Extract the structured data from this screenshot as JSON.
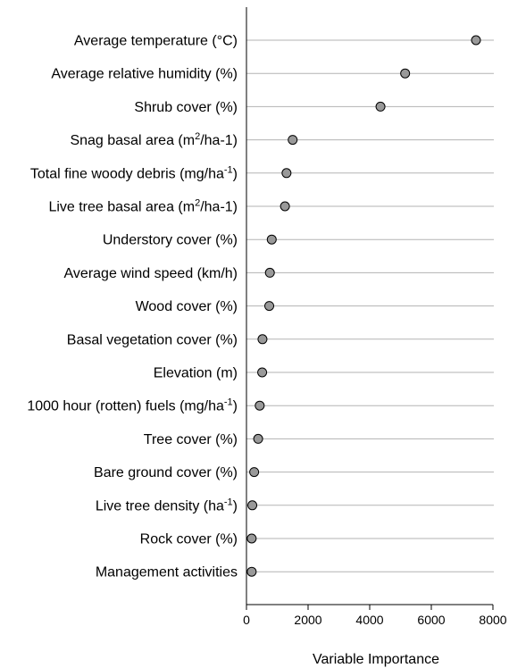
{
  "chart_data": {
    "type": "scatter",
    "orientation": "horizontal-dot-plot",
    "xlabel": "Variable Importance",
    "ylabel": "",
    "xlim": [
      0,
      8000
    ],
    "xticks": [
      0,
      2000,
      4000,
      6000,
      8000
    ],
    "xtick_labels": [
      "0",
      "2000",
      "4000",
      "6000",
      "8000"
    ],
    "grid": "horizontal-lines",
    "marker_color": "#999999",
    "categories": [
      {
        "label": "Average temperature (°C)",
        "base": "Average temperature (°C)",
        "sup": "",
        "tail": "",
        "value": 7450
      },
      {
        "label": "Average relative humidity (%)",
        "base": "Average relative humidity (%)",
        "sup": "",
        "tail": "",
        "value": 5150
      },
      {
        "label": "Shrub cover (%)",
        "base": "Shrub cover (%)",
        "sup": "",
        "tail": "",
        "value": 4350
      },
      {
        "label": "Snag basal area (m2/ha-1)",
        "base": "Snag basal area (m",
        "sup": "2",
        "tail": "/ha-1)",
        "value": 1500
      },
      {
        "label": "Total fine woody debris (mg/ha-1)",
        "base": "Total fine woody debris (mg/ha",
        "sup": "-1",
        "tail": ")",
        "value": 1300
      },
      {
        "label": "Live tree basal area (m2/ha-1)",
        "base": "Live tree basal area (m",
        "sup": "2",
        "tail": "/ha-1)",
        "value": 1250
      },
      {
        "label": "Understory cover (%)",
        "base": "Understory cover (%)",
        "sup": "",
        "tail": "",
        "value": 820
      },
      {
        "label": "Average wind speed (km/h)",
        "base": "Average wind speed (km/h)",
        "sup": "",
        "tail": "",
        "value": 760
      },
      {
        "label": "Wood cover (%)",
        "base": "Wood cover (%)",
        "sup": "",
        "tail": "",
        "value": 740
      },
      {
        "label": "Basal vegetation cover (%)",
        "base": "Basal vegetation cover (%)",
        "sup": "",
        "tail": "",
        "value": 520
      },
      {
        "label": "Elevation (m)",
        "base": "Elevation (m)",
        "sup": "",
        "tail": "",
        "value": 510
      },
      {
        "label": "1000 hour (rotten) fuels (mg/ha-1)",
        "base": "1000 hour (rotten) fuels (mg/ha",
        "sup": "-1",
        "tail": ")",
        "value": 430
      },
      {
        "label": "Tree cover (%)",
        "base": "Tree cover (%)",
        "sup": "",
        "tail": "",
        "value": 380
      },
      {
        "label": "Bare ground cover (%)",
        "base": "Bare ground cover (%)",
        "sup": "",
        "tail": "",
        "value": 250
      },
      {
        "label": "Live tree density (ha-1)",
        "base": "Live tree density (ha",
        "sup": "-1",
        "tail": ")",
        "value": 190
      },
      {
        "label": "Rock cover (%)",
        "base": "Rock cover (%)",
        "sup": "",
        "tail": "",
        "value": 170
      },
      {
        "label": "Management activities",
        "base": "Management activities",
        "sup": "",
        "tail": "",
        "value": 170
      }
    ]
  }
}
